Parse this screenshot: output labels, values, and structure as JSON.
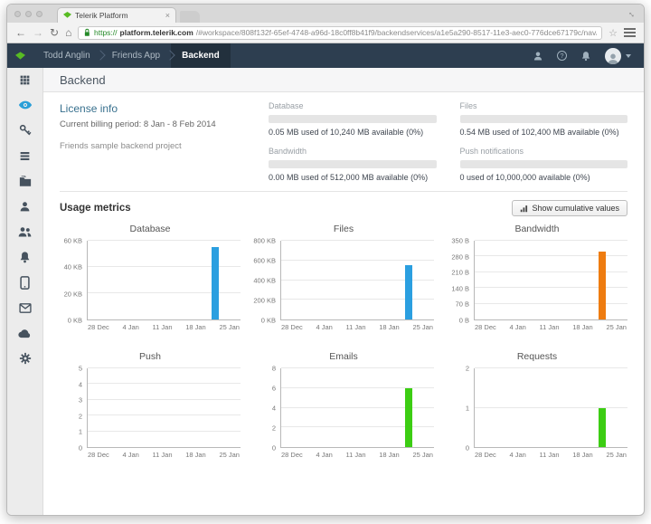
{
  "colors": {
    "navbar_bg": "#2d3e50",
    "brand_green": "#58bb23",
    "active_blue": "#2a9fd8"
  },
  "browser": {
    "tab_title": "Telerik Platform",
    "url_scheme": "https://",
    "url_host": "platform.telerik.com",
    "url_path": "/#workspace/808f132f-65ef-4748-a96d-18c0ff8b41f9/backendservices/a1e5a290-8517-11e3-aec0-776dce67179c/nav/%..."
  },
  "icons": {
    "back": "←",
    "forward": "→",
    "reload": "↻",
    "home": "⌂",
    "bookmark": "☆",
    "close_tab": "×",
    "fullscreen": "↔",
    "help": "?"
  },
  "navbar": {
    "breadcrumbs": [
      {
        "label": "Todd Anglin"
      },
      {
        "label": "Friends App"
      },
      {
        "label": "Backend"
      }
    ]
  },
  "page": {
    "title": "Backend"
  },
  "sidebar": {
    "items": [
      "menu-grid",
      "overview",
      "api-keys",
      "data",
      "files",
      "users",
      "user-groups",
      "notifications",
      "devices",
      "emails",
      "cloud-code",
      "settings"
    ]
  },
  "license": {
    "title": "License info",
    "billing_period": "Current billing period: 8 Jan - 8 Feb 2014",
    "project": "Friends sample backend project",
    "meters": [
      {
        "label": "Database",
        "usage": "0.05 MB used of 10,240 MB available (0%)",
        "percent": 0
      },
      {
        "label": "Files",
        "usage": "0.54 MB used of 102,400 MB available (0%)",
        "percent": 0
      },
      {
        "label": "Bandwidth",
        "usage": "0.00 MB used of 512,000 MB available (0%)",
        "percent": 0
      },
      {
        "label": "Push notifications",
        "usage": "0 used of 10,000,000 available (0%)",
        "percent": 0
      }
    ]
  },
  "usage": {
    "title": "Usage metrics",
    "cumulative_button": "Show cumulative values"
  },
  "chart_data": [
    {
      "type": "bar",
      "title": "Database",
      "x_ticks": [
        "28 Dec",
        "4 Jan",
        "11 Jan",
        "18 Jan",
        "25 Jan"
      ],
      "y_ticks": [
        0,
        20,
        40,
        60
      ],
      "y_tick_labels": [
        "0 KB",
        "20 KB",
        "40 KB",
        "60 KB"
      ],
      "ylim": [
        0,
        60
      ],
      "grid": true,
      "legend": false,
      "bars": [
        {
          "x": "23 Jan",
          "value": 55,
          "offset_pct": 81,
          "color": "#2b9fe0"
        }
      ]
    },
    {
      "type": "bar",
      "title": "Files",
      "x_ticks": [
        "28 Dec",
        "4 Jan",
        "11 Jan",
        "18 Jan",
        "25 Jan"
      ],
      "y_ticks": [
        0,
        200,
        400,
        600,
        800
      ],
      "y_tick_labels": [
        "0 KB",
        "200 KB",
        "400 KB",
        "600 KB",
        "800 KB"
      ],
      "ylim": [
        0,
        800
      ],
      "grid": true,
      "legend": false,
      "bars": [
        {
          "x": "23 Jan",
          "value": 550,
          "offset_pct": 81,
          "color": "#2b9fe0"
        }
      ]
    },
    {
      "type": "bar",
      "title": "Bandwidth",
      "x_ticks": [
        "28 Dec",
        "4 Jan",
        "11 Jan",
        "18 Jan",
        "25 Jan"
      ],
      "y_ticks": [
        0,
        70,
        140,
        210,
        280,
        350
      ],
      "y_tick_labels": [
        "0 B",
        "70 B",
        "140 B",
        "210 B",
        "280 B",
        "350 B"
      ],
      "ylim": [
        0,
        350
      ],
      "grid": true,
      "legend": false,
      "bars": [
        {
          "x": "23 Jan",
          "value": 300,
          "offset_pct": 81,
          "color": "#ee7c10"
        }
      ]
    },
    {
      "type": "bar",
      "title": "Push",
      "x_ticks": [
        "28 Dec",
        "4 Jan",
        "11 Jan",
        "18 Jan",
        "25 Jan"
      ],
      "y_ticks": [
        0,
        1,
        2,
        3,
        4,
        5
      ],
      "y_tick_labels": [
        "0",
        "1",
        "2",
        "3",
        "4",
        "5"
      ],
      "ylim": [
        0,
        5
      ],
      "grid": true,
      "legend": false,
      "bars": []
    },
    {
      "type": "bar",
      "title": "Emails",
      "x_ticks": [
        "28 Dec",
        "4 Jan",
        "11 Jan",
        "18 Jan",
        "25 Jan"
      ],
      "y_ticks": [
        0,
        2,
        4,
        6,
        8
      ],
      "y_tick_labels": [
        "0",
        "2",
        "4",
        "6",
        "8"
      ],
      "ylim": [
        0,
        8
      ],
      "grid": true,
      "legend": false,
      "bars": [
        {
          "x": "23 Jan",
          "value": 6,
          "offset_pct": 81,
          "color": "#3ccd13"
        }
      ]
    },
    {
      "type": "bar",
      "title": "Requests",
      "x_ticks": [
        "28 Dec",
        "4 Jan",
        "11 Jan",
        "18 Jan",
        "25 Jan"
      ],
      "y_ticks": [
        0,
        1,
        2
      ],
      "y_tick_labels": [
        "0",
        "1",
        "2"
      ],
      "ylim": [
        0,
        2
      ],
      "grid": true,
      "legend": false,
      "bars": [
        {
          "x": "23 Jan",
          "value": 1,
          "offset_pct": 81,
          "color": "#3ccd13"
        }
      ]
    }
  ]
}
